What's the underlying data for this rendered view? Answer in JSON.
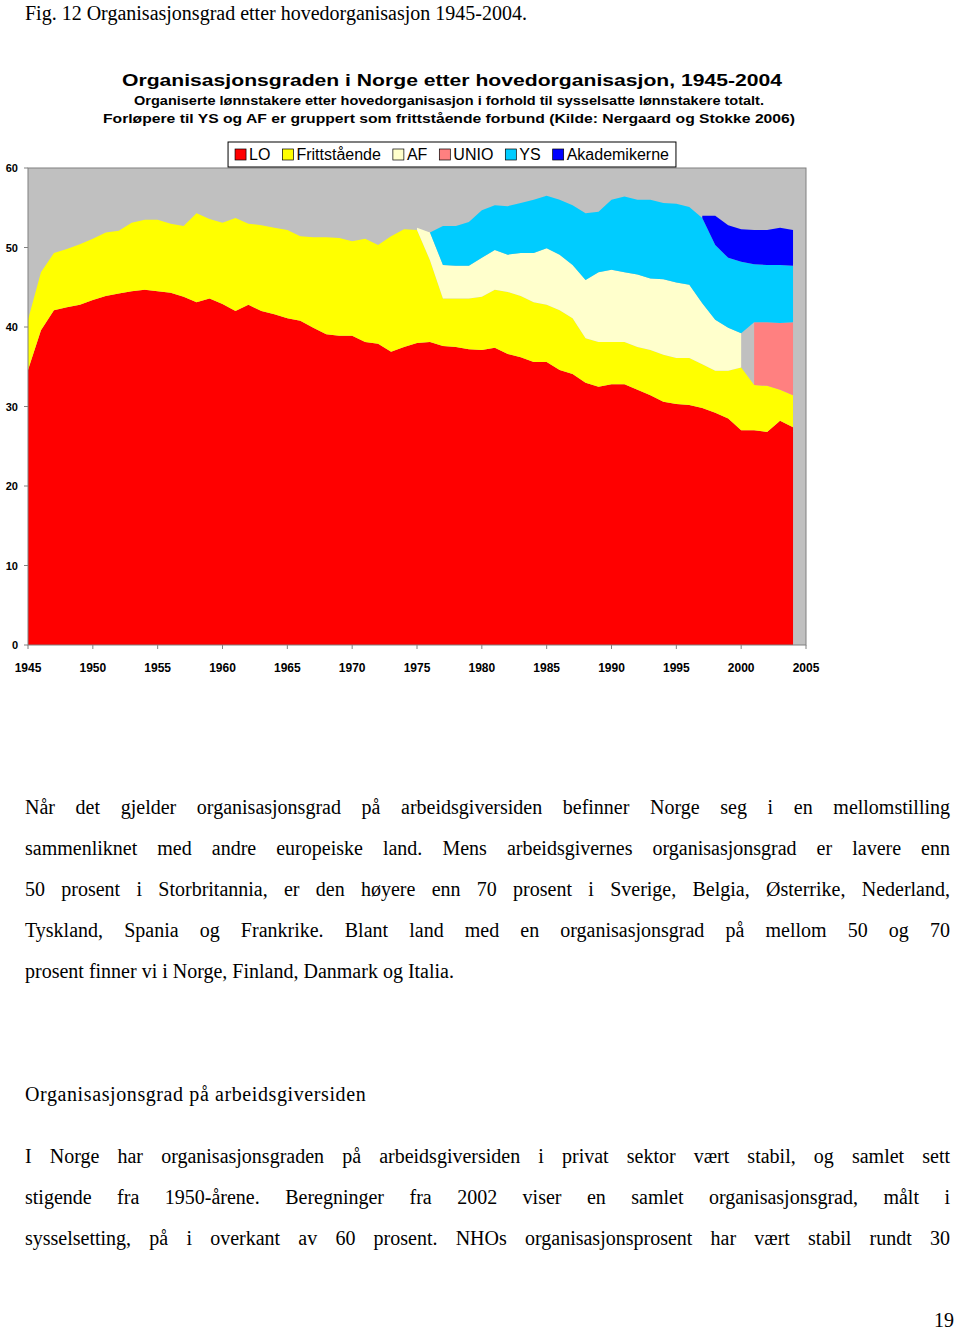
{
  "caption": "Fig. 12 Organisasjonsgrad etter hovedorganisasjon 1945-2004.",
  "chart_data": {
    "type": "area",
    "stacked": true,
    "title": "Organisasjonsgraden i Norge etter hovedorganisasjon, 1945-2004",
    "subtitle": [
      "Organiserte lønnstakere etter hovedorganisasjon i forhold til sysselsatte lønnstakere totalt.",
      "Forløpere til YS og AF er gruppert som frittstående forbund (Kilde: Nergaard  og Stokke 2006)"
    ],
    "x": [
      1945,
      1946,
      1947,
      1948,
      1949,
      1950,
      1951,
      1952,
      1953,
      1954,
      1955,
      1956,
      1957,
      1958,
      1959,
      1960,
      1961,
      1962,
      1963,
      1964,
      1965,
      1966,
      1967,
      1968,
      1969,
      1970,
      1971,
      1972,
      1973,
      1974,
      1975,
      1976,
      1977,
      1978,
      1979,
      1980,
      1981,
      1982,
      1983,
      1984,
      1985,
      1986,
      1987,
      1988,
      1989,
      1990,
      1991,
      1992,
      1993,
      1994,
      1995,
      1996,
      1997,
      1998,
      1999,
      2000,
      2001,
      2002,
      2003,
      2004
    ],
    "xlim": [
      1945,
      2005
    ],
    "xticks": [
      1945,
      1950,
      1955,
      1960,
      1965,
      1970,
      1975,
      1980,
      1985,
      1990,
      1995,
      2000,
      2005
    ],
    "ylim": [
      0,
      60
    ],
    "yticks": [
      0,
      10,
      20,
      30,
      40,
      50,
      60
    ],
    "grid": false,
    "legend": "top",
    "series": [
      {
        "name": "LO",
        "color": "#ff0000",
        "values": [
          34.6,
          39.6,
          42.1,
          42.5,
          42.8,
          43.4,
          43.9,
          44.2,
          44.5,
          44.7,
          44.5,
          44.3,
          43.8,
          43.1,
          43.6,
          42.9,
          42.0,
          42.8,
          42.0,
          41.6,
          41.1,
          40.8,
          39.9,
          39.1,
          38.9,
          38.9,
          38.1,
          37.9,
          36.9,
          37.5,
          38.0,
          38.1,
          37.6,
          37.5,
          37.2,
          37.1,
          37.4,
          36.6,
          36.2,
          35.6,
          35.6,
          34.6,
          34.1,
          33.0,
          32.5,
          32.8,
          32.8,
          32.1,
          31.4,
          30.6,
          30.3,
          30.2,
          29.8,
          29.2,
          28.5,
          27.0,
          27.0,
          26.8,
          28.2,
          27.4
        ]
      },
      {
        "name": "Frittstående",
        "color": "#ffff00",
        "values": [
          6.3,
          7.3,
          7.2,
          7.3,
          7.6,
          7.7,
          8.0,
          7.9,
          8.6,
          8.8,
          9.0,
          8.7,
          8.9,
          11.2,
          10.0,
          10.2,
          11.7,
          10.2,
          10.8,
          10.9,
          11.1,
          10.6,
          11.4,
          12.2,
          12.3,
          11.9,
          13.0,
          12.4,
          14.5,
          14.8,
          14.2,
          10.3,
          6.0,
          6.1,
          6.4,
          6.7,
          7.3,
          7.8,
          7.7,
          7.5,
          7.2,
          7.5,
          7.0,
          5.6,
          5.6,
          5.3,
          5.3,
          5.4,
          5.7,
          5.9,
          5.8,
          5.9,
          5.5,
          5.3,
          6.0,
          7.9,
          5.7,
          5.8,
          3.9,
          4.0
        ]
      },
      {
        "name": "AF",
        "color": "#ffffcc",
        "values": [
          null,
          null,
          null,
          null,
          null,
          null,
          null,
          null,
          null,
          null,
          null,
          null,
          null,
          null,
          null,
          null,
          null,
          null,
          null,
          null,
          null,
          null,
          null,
          null,
          null,
          null,
          null,
          null,
          null,
          null,
          0.3,
          3.5,
          4.2,
          4.1,
          4.1,
          4.9,
          5.0,
          4.7,
          5.4,
          6.2,
          7.1,
          7.0,
          6.7,
          7.3,
          8.8,
          9.1,
          8.8,
          9.1,
          9.0,
          9.5,
          9.5,
          9.2,
          7.7,
          6.4,
          5.4,
          4.3,
          null,
          null,
          null,
          null
        ]
      },
      {
        "name": "UNIO",
        "color": "#ff8080",
        "values": [
          null,
          null,
          null,
          null,
          null,
          null,
          null,
          null,
          null,
          null,
          null,
          null,
          null,
          null,
          null,
          null,
          null,
          null,
          null,
          null,
          null,
          null,
          null,
          null,
          null,
          null,
          null,
          null,
          null,
          null,
          null,
          null,
          null,
          null,
          null,
          null,
          null,
          null,
          null,
          null,
          null,
          null,
          null,
          null,
          null,
          null,
          null,
          null,
          null,
          null,
          null,
          null,
          null,
          null,
          null,
          null,
          7.9,
          8.0,
          8.4,
          9.2
        ]
      },
      {
        "name": "YS",
        "color": "#00ccff",
        "values": [
          null,
          null,
          null,
          null,
          null,
          null,
          null,
          null,
          null,
          null,
          null,
          null,
          null,
          null,
          null,
          null,
          null,
          null,
          null,
          null,
          null,
          null,
          null,
          null,
          null,
          null,
          null,
          null,
          null,
          null,
          null,
          0.0,
          4.9,
          5.0,
          5.5,
          6.0,
          5.6,
          6.1,
          6.3,
          6.7,
          6.6,
          6.9,
          7.5,
          8.4,
          7.6,
          8.8,
          9.5,
          9.4,
          9.9,
          9.6,
          9.9,
          9.8,
          10.7,
          9.4,
          8.8,
          9.0,
          7.3,
          7.2,
          7.3,
          7.1
        ]
      },
      {
        "name": "Akademikerne",
        "color": "#0000ff",
        "values": [
          null,
          null,
          null,
          null,
          null,
          null,
          null,
          null,
          null,
          null,
          null,
          null,
          null,
          null,
          null,
          null,
          null,
          null,
          null,
          null,
          null,
          null,
          null,
          null,
          null,
          null,
          null,
          null,
          null,
          null,
          null,
          null,
          null,
          null,
          null,
          null,
          null,
          null,
          null,
          null,
          null,
          null,
          null,
          null,
          null,
          null,
          null,
          null,
          null,
          null,
          null,
          null,
          0.3,
          3.7,
          4.1,
          4.1,
          4.3,
          4.4,
          4.7,
          4.5
        ]
      }
    ]
  },
  "body": {
    "paragraph_1": [
      "Når det gjelder organisasjonsgrad på arbeidsgiversiden befinner Norge seg i en mellomstilling",
      "sammenliknet med andre europeiske land. Mens arbeidsgivernes organisasjonsgrad er lavere enn",
      "50 prosent i Storbritannia, er den høyere enn 70 prosent i Sverige, Belgia, Østerrike, Nederland,",
      "Tyskland, Spania og Frankrike.  Blant land med en organisasjonsgrad på mellom 50 og 70",
      "prosent finner vi i Norge, Finland, Danmark og Italia."
    ],
    "heading": "Organisasjonsgrad på arbeidsgiversiden",
    "paragraph_2": [
      "I Norge har organisasjonsgraden på arbeidsgiversiden i privat sektor vært stabil, og samlet sett",
      "stigende fra 1950-årene. Beregninger fra 2002 viser en samlet organisasjonsgrad, målt i",
      "sysselsetting, på i overkant av 60 prosent. NHOs organisasjonsprosent har vært stabil rundt 30"
    ]
  },
  "page_number": "19"
}
